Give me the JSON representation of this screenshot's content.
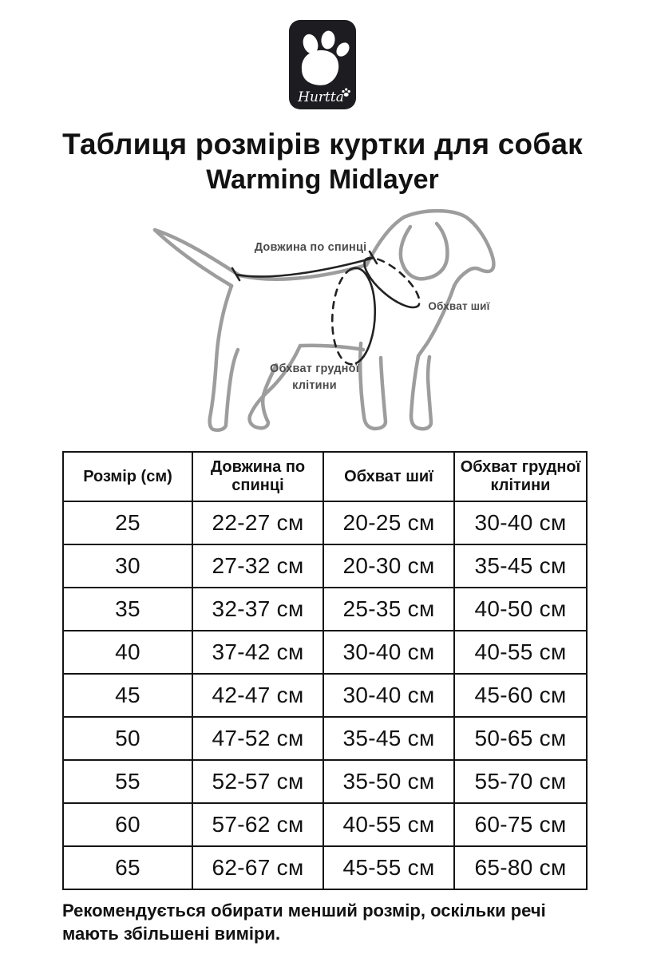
{
  "colors": {
    "page-bg": "#ffffff",
    "ink": "#121212",
    "logo-bg": "#1c1c21",
    "logo-fg": "#ffffff",
    "dog-outline": "#9d9d9d",
    "measure": "#222222",
    "diagram-label": "#4b4b4b",
    "table-border": "#141414"
  },
  "logo": {
    "brand": "Hurtta"
  },
  "title": {
    "line1": "Таблиця розмірів куртки для собак",
    "line2": "Warming Midlayer"
  },
  "diagram": {
    "labels": {
      "back_length": "Довжина по спинці",
      "neck_girth": "Обхват шиї",
      "chest_girth": "Обхват грудної клітини"
    }
  },
  "table": {
    "headers": [
      "Розмір (см)",
      "Довжина по спинці",
      "Обхват шиї",
      "Обхват грудної клітини"
    ],
    "rows": [
      [
        "25",
        "22-27 см",
        "20-25 см",
        "30-40 см"
      ],
      [
        "30",
        "27-32 см",
        "20-30 см",
        "35-45 см"
      ],
      [
        "35",
        "32-37 см",
        "25-35 см",
        "40-50 см"
      ],
      [
        "40",
        "37-42 см",
        "30-40 см",
        "40-55 см"
      ],
      [
        "45",
        "42-47 см",
        "30-40 см",
        "45-60 см"
      ],
      [
        "50",
        "47-52 см",
        "35-45 см",
        "50-65 см"
      ],
      [
        "55",
        "52-57 см",
        "35-50 см",
        "55-70 см"
      ],
      [
        "60",
        "57-62 см",
        "40-55 см",
        "60-75 см"
      ],
      [
        "65",
        "62-67 см",
        "45-55 см",
        "65-80 см"
      ]
    ]
  },
  "footer": {
    "note": "Рекомендується обирати менший розмір, оскільки речі мають збільшені виміри."
  }
}
